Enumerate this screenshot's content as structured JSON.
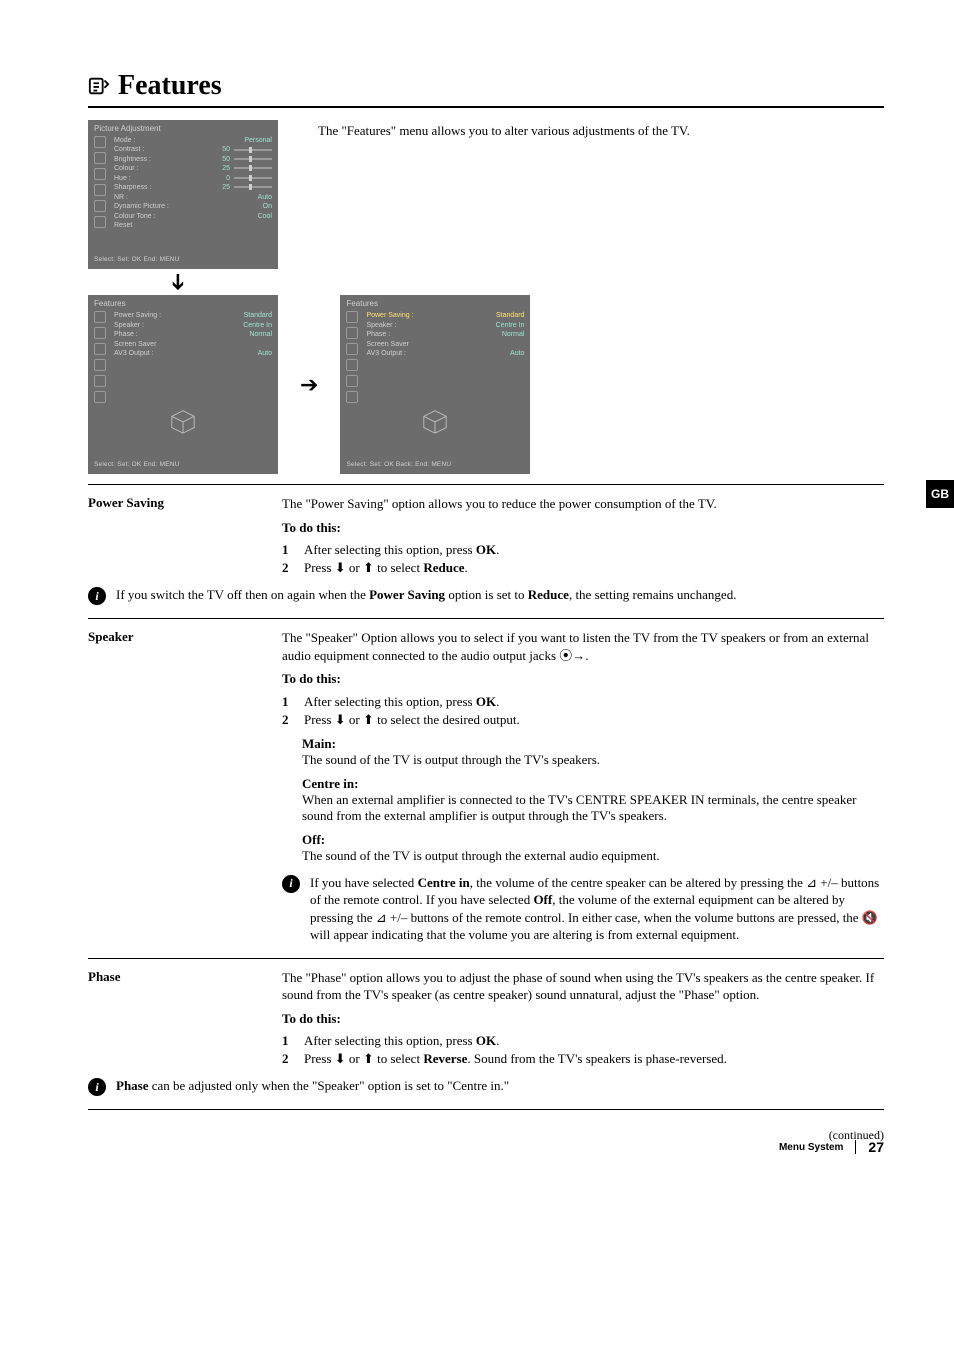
{
  "page": {
    "title": "Features",
    "side_tab": "GB",
    "continued": "(continued)",
    "footer_section": "Menu System",
    "page_number": "27"
  },
  "intro": {
    "text": "The \"Features\" menu allows you to alter various adjustments of the TV."
  },
  "osd_pic": {
    "title": "Picture Adjustment",
    "lines": [
      {
        "lbl": "Mode :",
        "val": "Personal"
      },
      {
        "lbl": "Contrast :",
        "val": "50",
        "bar": true
      },
      {
        "lbl": "Brightness :",
        "val": "50",
        "bar": true
      },
      {
        "lbl": "Colour :",
        "val": "25",
        "bar": true
      },
      {
        "lbl": "Hue :",
        "val": "0",
        "bar": true
      },
      {
        "lbl": "Sharpness :",
        "val": "25",
        "bar": true
      },
      {
        "lbl": "NR :",
        "val": "Auto"
      },
      {
        "lbl": "Dynamic Picture :",
        "val": "On"
      },
      {
        "lbl": "Colour Tone :",
        "val": "Cool"
      },
      {
        "lbl": "Reset",
        "val": ""
      }
    ],
    "foot": "Select:      Set:  OK   End:  MENU"
  },
  "osd_feat_a": {
    "title": "Features",
    "lines": [
      {
        "lbl": "Power Saving :",
        "val": "Standard"
      },
      {
        "lbl": "Speaker :",
        "val": "Centre In"
      },
      {
        "lbl": "Phase :",
        "val": "Normal"
      },
      {
        "lbl": "Screen Saver",
        "val": ""
      },
      {
        "lbl": "AV3 Output :",
        "val": "Auto"
      }
    ],
    "foot": "Select:      Set:  OK   End:  MENU"
  },
  "osd_feat_b": {
    "title": "Features",
    "lines": [
      {
        "lbl": "Power Saving :",
        "val": "Standard",
        "sel": true
      },
      {
        "lbl": "Speaker :",
        "val": "Centre In"
      },
      {
        "lbl": "Phase :",
        "val": "Normal"
      },
      {
        "lbl": "Screen Saver",
        "val": ""
      },
      {
        "lbl": "AV3 Output :",
        "val": "Auto"
      }
    ],
    "foot": "Select:      Set:  OK   Back:      End:  MENU"
  },
  "power_saving": {
    "label": "Power Saving",
    "desc": "The \"Power Saving\" option allows you to reduce the power consumption of the TV.",
    "todo": "To do this:",
    "step1": "After selecting this option, press ",
    "step1_b": "OK",
    "step1_end": ".",
    "step2_a": "Press ",
    "step2_b": " or ",
    "step2_c": " to select ",
    "step2_d": "Reduce",
    "step2_e": ".",
    "note_a": "If you switch the TV off then on again when the ",
    "note_b": "Power Saving",
    "note_c": " option is set to ",
    "note_d": "Reduce",
    "note_e": ", the setting remains unchanged."
  },
  "speaker": {
    "label": "Speaker",
    "desc_a": "The \"Speaker\" Option allows you to select if you want to listen the TV from the TV speakers or from an external audio equipment connected to the audio output jacks ",
    "desc_b": ".",
    "todo": "To do this:",
    "step1": "After selecting this option, press ",
    "step1_b": "OK",
    "step1_end": ".",
    "step2_a": "Press ",
    "step2_b": " or ",
    "step2_c": " to select the desired output.",
    "opt_main_hd": "Main:",
    "opt_main_tx": "The sound of the TV is output through the TV's speakers.",
    "opt_centre_hd": "Centre in:",
    "opt_centre_tx": "When an external amplifier is connected to the TV's CENTRE SPEAKER IN terminals, the centre speaker sound from the external amplifier is output through the TV's speakers.",
    "opt_off_hd": "Off:",
    "opt_off_tx": "The sound of the TV is output through the external audio equipment.",
    "inote_a": "If you have selected ",
    "inote_b": "Centre in",
    "inote_c": ", the volume of the centre speaker can be altered by pressing the ",
    "inote_d": " +/– buttons of the remote control. If you have selected ",
    "inote_e": "Off",
    "inote_f": ", the volume of the external equipment can be altered by pressing the ",
    "inote_g": " +/– buttons of the remote control. In either case, when the volume buttons are pressed, the ",
    "inote_h": " will appear indicating that the volume you are altering is from external equipment."
  },
  "phase": {
    "label": "Phase",
    "desc": "The \"Phase\" option allows you to adjust the phase of sound when using the TV's speakers as the centre speaker. If sound from the TV's speaker (as centre speaker) sound unnatural, adjust the \"Phase\" option.",
    "todo": "To do this:",
    "step1": "After selecting this option, press ",
    "step1_b": "OK",
    "step1_end": ".",
    "step2_a": "Press ",
    "step2_b": " or ",
    "step2_c": " to select ",
    "step2_d": "Reverse",
    "step2_e": ". Sound from the TV's speakers is phase-reversed.",
    "note_a": "Phase",
    "note_b": " can be adjusted only when the \"Speaker\" option is set to \"Centre in.\""
  }
}
